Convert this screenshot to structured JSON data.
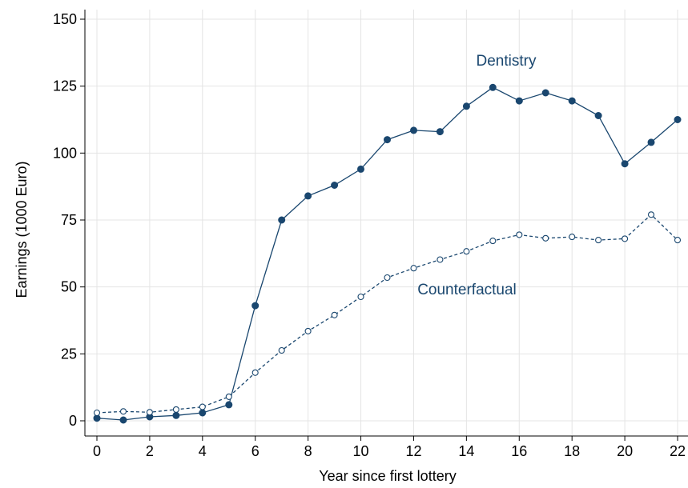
{
  "chart_data": {
    "type": "line",
    "title": "",
    "xlabel": "Year since first lottery",
    "ylabel": "Earnings (1000 Euro)",
    "xlim": [
      0,
      22
    ],
    "ylim": [
      0,
      150
    ],
    "x_ticks": [
      0,
      2,
      4,
      6,
      8,
      10,
      12,
      14,
      16,
      18,
      20,
      22
    ],
    "y_ticks": [
      0,
      25,
      50,
      75,
      100,
      125,
      150
    ],
    "grid": true,
    "legend": "none (series labeled directly on plot)",
    "x": [
      0,
      1,
      2,
      3,
      4,
      5,
      6,
      7,
      8,
      9,
      10,
      11,
      12,
      13,
      14,
      15,
      16,
      17,
      18,
      19,
      20,
      21,
      22
    ],
    "series": [
      {
        "name": "Dentistry",
        "color": "#1a476f",
        "marker": "filled-circle",
        "line": "solid",
        "values": [
          1,
          0.3,
          1.5,
          2,
          3,
          6,
          43,
          75,
          84,
          88,
          94,
          105,
          108.5,
          108,
          117.5,
          124.5,
          119.5,
          122.5,
          119.5,
          114,
          96,
          104,
          112.5
        ]
      },
      {
        "name": "Counterfactual",
        "color": "#1a476f",
        "marker": "hollow-circle",
        "line": "dashed",
        "values": [
          3,
          3.5,
          3.2,
          4.2,
          5.2,
          9,
          18,
          26.3,
          33.5,
          39.5,
          46.3,
          53.5,
          57,
          60.2,
          63.3,
          67.2,
          69.5,
          68.2,
          68.7,
          67.5,
          68,
          77,
          67.5
        ]
      }
    ]
  }
}
